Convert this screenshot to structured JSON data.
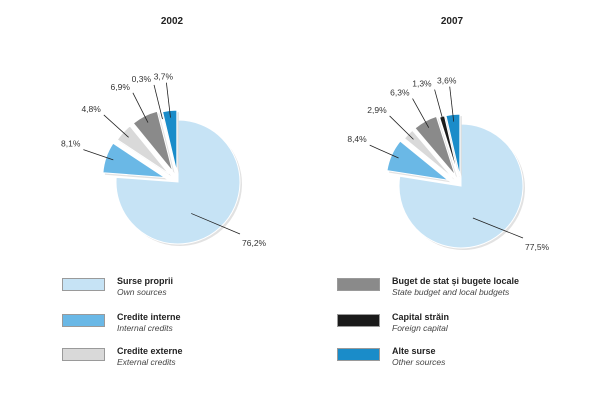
{
  "chart_data": [
    {
      "type": "pie",
      "title": "2002",
      "slices": [
        {
          "label": "Surse proprii",
          "value": 76.2,
          "value_label": "76,2%",
          "color": "#c6e3f5"
        },
        {
          "label": "Credite interne",
          "value": 8.1,
          "value_label": "8,1%",
          "color": "#6ab8e6"
        },
        {
          "label": "Credite externe",
          "value": 4.8,
          "value_label": "4,8%",
          "color": "#d9d9d9"
        },
        {
          "label": "Buget de stat și bugete locale",
          "value": 6.9,
          "value_label": "6,9%",
          "color": "#8a8a8a"
        },
        {
          "label": "Capital străin",
          "value": 0.3,
          "value_label": "0,3%",
          "color": "#1a1a1a"
        },
        {
          "label": "Alte surse",
          "value": 3.7,
          "value_label": "3,7%",
          "color": "#1a8cc9"
        }
      ]
    },
    {
      "type": "pie",
      "title": "2007",
      "slices": [
        {
          "label": "Surse proprii",
          "value": 77.5,
          "value_label": "77,5%",
          "color": "#c6e3f5"
        },
        {
          "label": "Credite interne",
          "value": 8.4,
          "value_label": "8,4%",
          "color": "#6ab8e6"
        },
        {
          "label": "Credite externe",
          "value": 2.9,
          "value_label": "2,9%",
          "color": "#d9d9d9"
        },
        {
          "label": "Buget de stat și bugete locale",
          "value": 6.3,
          "value_label": "6,3%",
          "color": "#8a8a8a"
        },
        {
          "label": "Capital străin",
          "value": 1.3,
          "value_label": "1,3%",
          "color": "#1a1a1a"
        },
        {
          "label": "Alte surse",
          "value": 3.6,
          "value_label": "3,6%",
          "color": "#1a8cc9"
        }
      ]
    }
  ],
  "legend": [
    {
      "label": "Surse proprii",
      "sublabel": "Own sources",
      "color": "#c6e3f5"
    },
    {
      "label": "Credite interne",
      "sublabel": "Internal credits",
      "color": "#6ab8e6"
    },
    {
      "label": "Credite externe",
      "sublabel": "External credits",
      "color": "#d9d9d9"
    },
    {
      "label": "Buget de stat și bugete locale",
      "sublabel": "State budget and local budgets",
      "color": "#8a8a8a"
    },
    {
      "label": "Capital străin",
      "sublabel": "Foreign capital",
      "color": "#1a1a1a"
    },
    {
      "label": "Alte surse",
      "sublabel": "Other sources",
      "color": "#1a8cc9"
    }
  ]
}
